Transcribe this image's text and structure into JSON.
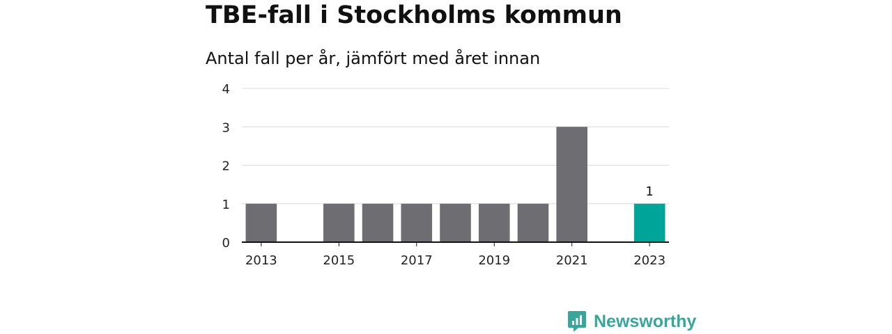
{
  "title": "TBE-fall i Stockholms kommun",
  "subtitle": "Antal fall per år, jämfört med året innan",
  "brand": {
    "name": "Newsworthy",
    "icon": "newsworthy-logo-icon"
  },
  "colors": {
    "bar": "#6e6d72",
    "highlight": "#00a498",
    "axis": "#111111",
    "grid": "#d9d9d9"
  },
  "chart_data": {
    "type": "bar",
    "title": "TBE-fall i Stockholms kommun",
    "subtitle": "Antal fall per år, jämfört med året innan",
    "xlabel": "",
    "ylabel": "",
    "categories": [
      "2013",
      "2014",
      "2015",
      "2016",
      "2017",
      "2018",
      "2019",
      "2020",
      "2021",
      "2022",
      "2023"
    ],
    "values": [
      1,
      0,
      1,
      1,
      1,
      1,
      1,
      1,
      3,
      0,
      1
    ],
    "x_tick_labels": [
      "2013",
      "2015",
      "2017",
      "2019",
      "2021",
      "2023"
    ],
    "y_ticks": [
      "0",
      "1",
      "2",
      "3",
      "4"
    ],
    "ylim": [
      0,
      4
    ],
    "grid": true,
    "highlight_category": "2023",
    "data_labels": [
      {
        "category": "2023",
        "text": "1"
      }
    ]
  }
}
